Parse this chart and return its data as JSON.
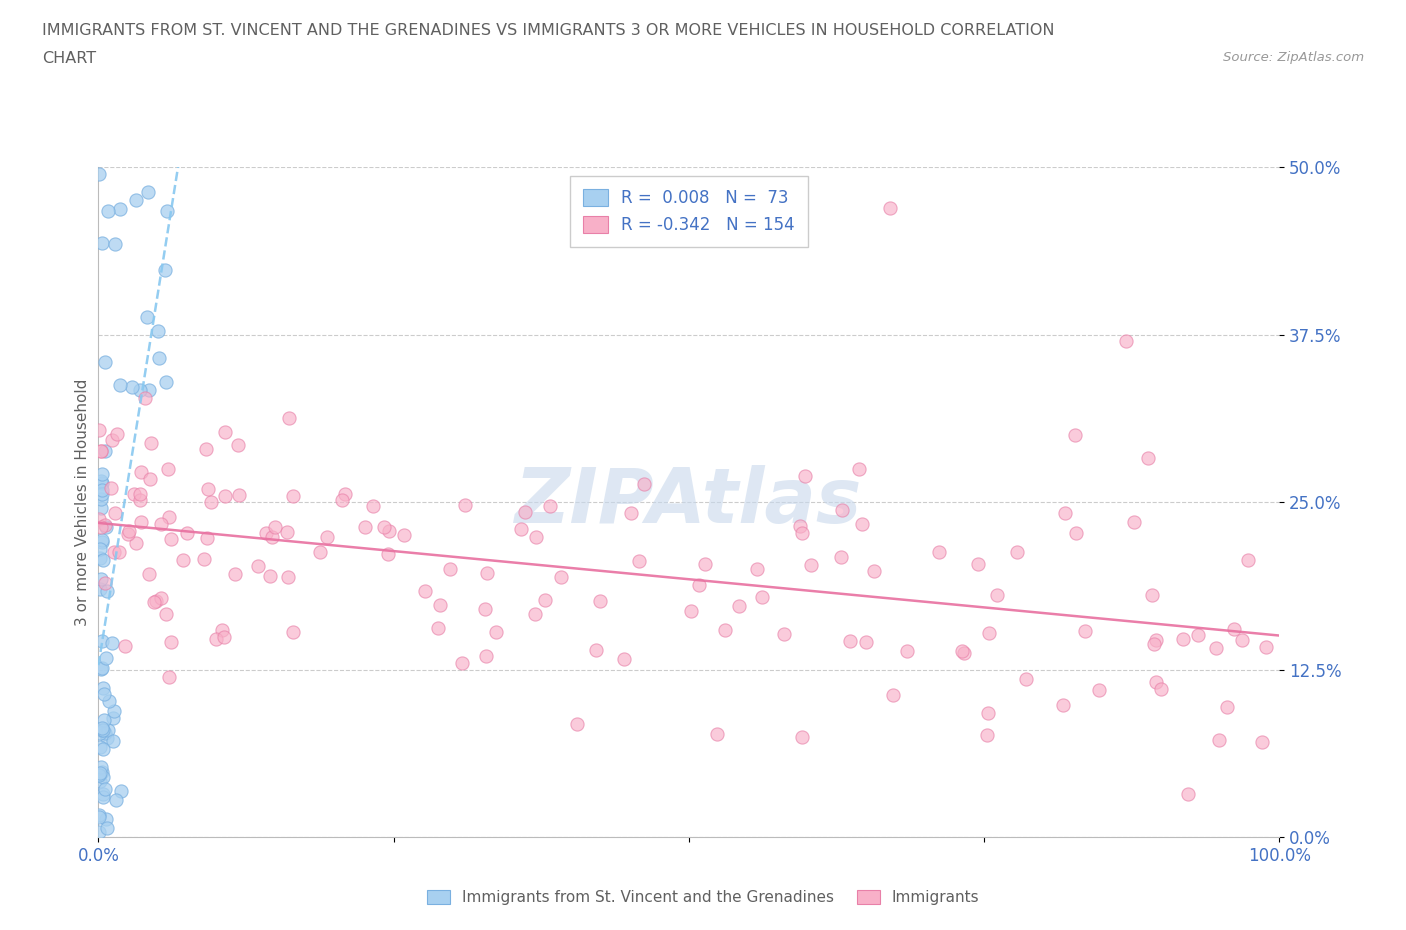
{
  "title_line1": "IMMIGRANTS FROM ST. VINCENT AND THE GRENADINES VS IMMIGRANTS 3 OR MORE VEHICLES IN HOUSEHOLD CORRELATION",
  "title_line2": "CHART",
  "source_text": "Source: ZipAtlas.com",
  "ylabel": "3 or more Vehicles in Household",
  "xlim": [
    0,
    100
  ],
  "ylim": [
    0,
    50
  ],
  "yticks": [
    0,
    12.5,
    25.0,
    37.5,
    50.0
  ],
  "ytick_labels": [
    "0.0%",
    "12.5%",
    "25.0%",
    "37.5%",
    "50.0%"
  ],
  "blue_R": 0.008,
  "blue_N": 73,
  "pink_R": -0.342,
  "pink_N": 154,
  "blue_color": "#a8d0f0",
  "pink_color": "#f8b0c8",
  "blue_edge": "#7ab0e0",
  "pink_edge": "#e880a8",
  "trend_blue_color": "#88c8f0",
  "trend_pink_color": "#e870a0",
  "legend_label_blue": "Immigrants from St. Vincent and the Grenadines",
  "legend_label_pink": "Immigrants",
  "watermark": "ZIPAtlas",
  "watermark_color": "#c8d8ec",
  "background_color": "#ffffff",
  "grid_color": "#cccccc",
  "title_color": "#606060",
  "axis_label_color": "#606060",
  "tick_label_color": "#4472c4",
  "legend_text_color": "#4472c4"
}
